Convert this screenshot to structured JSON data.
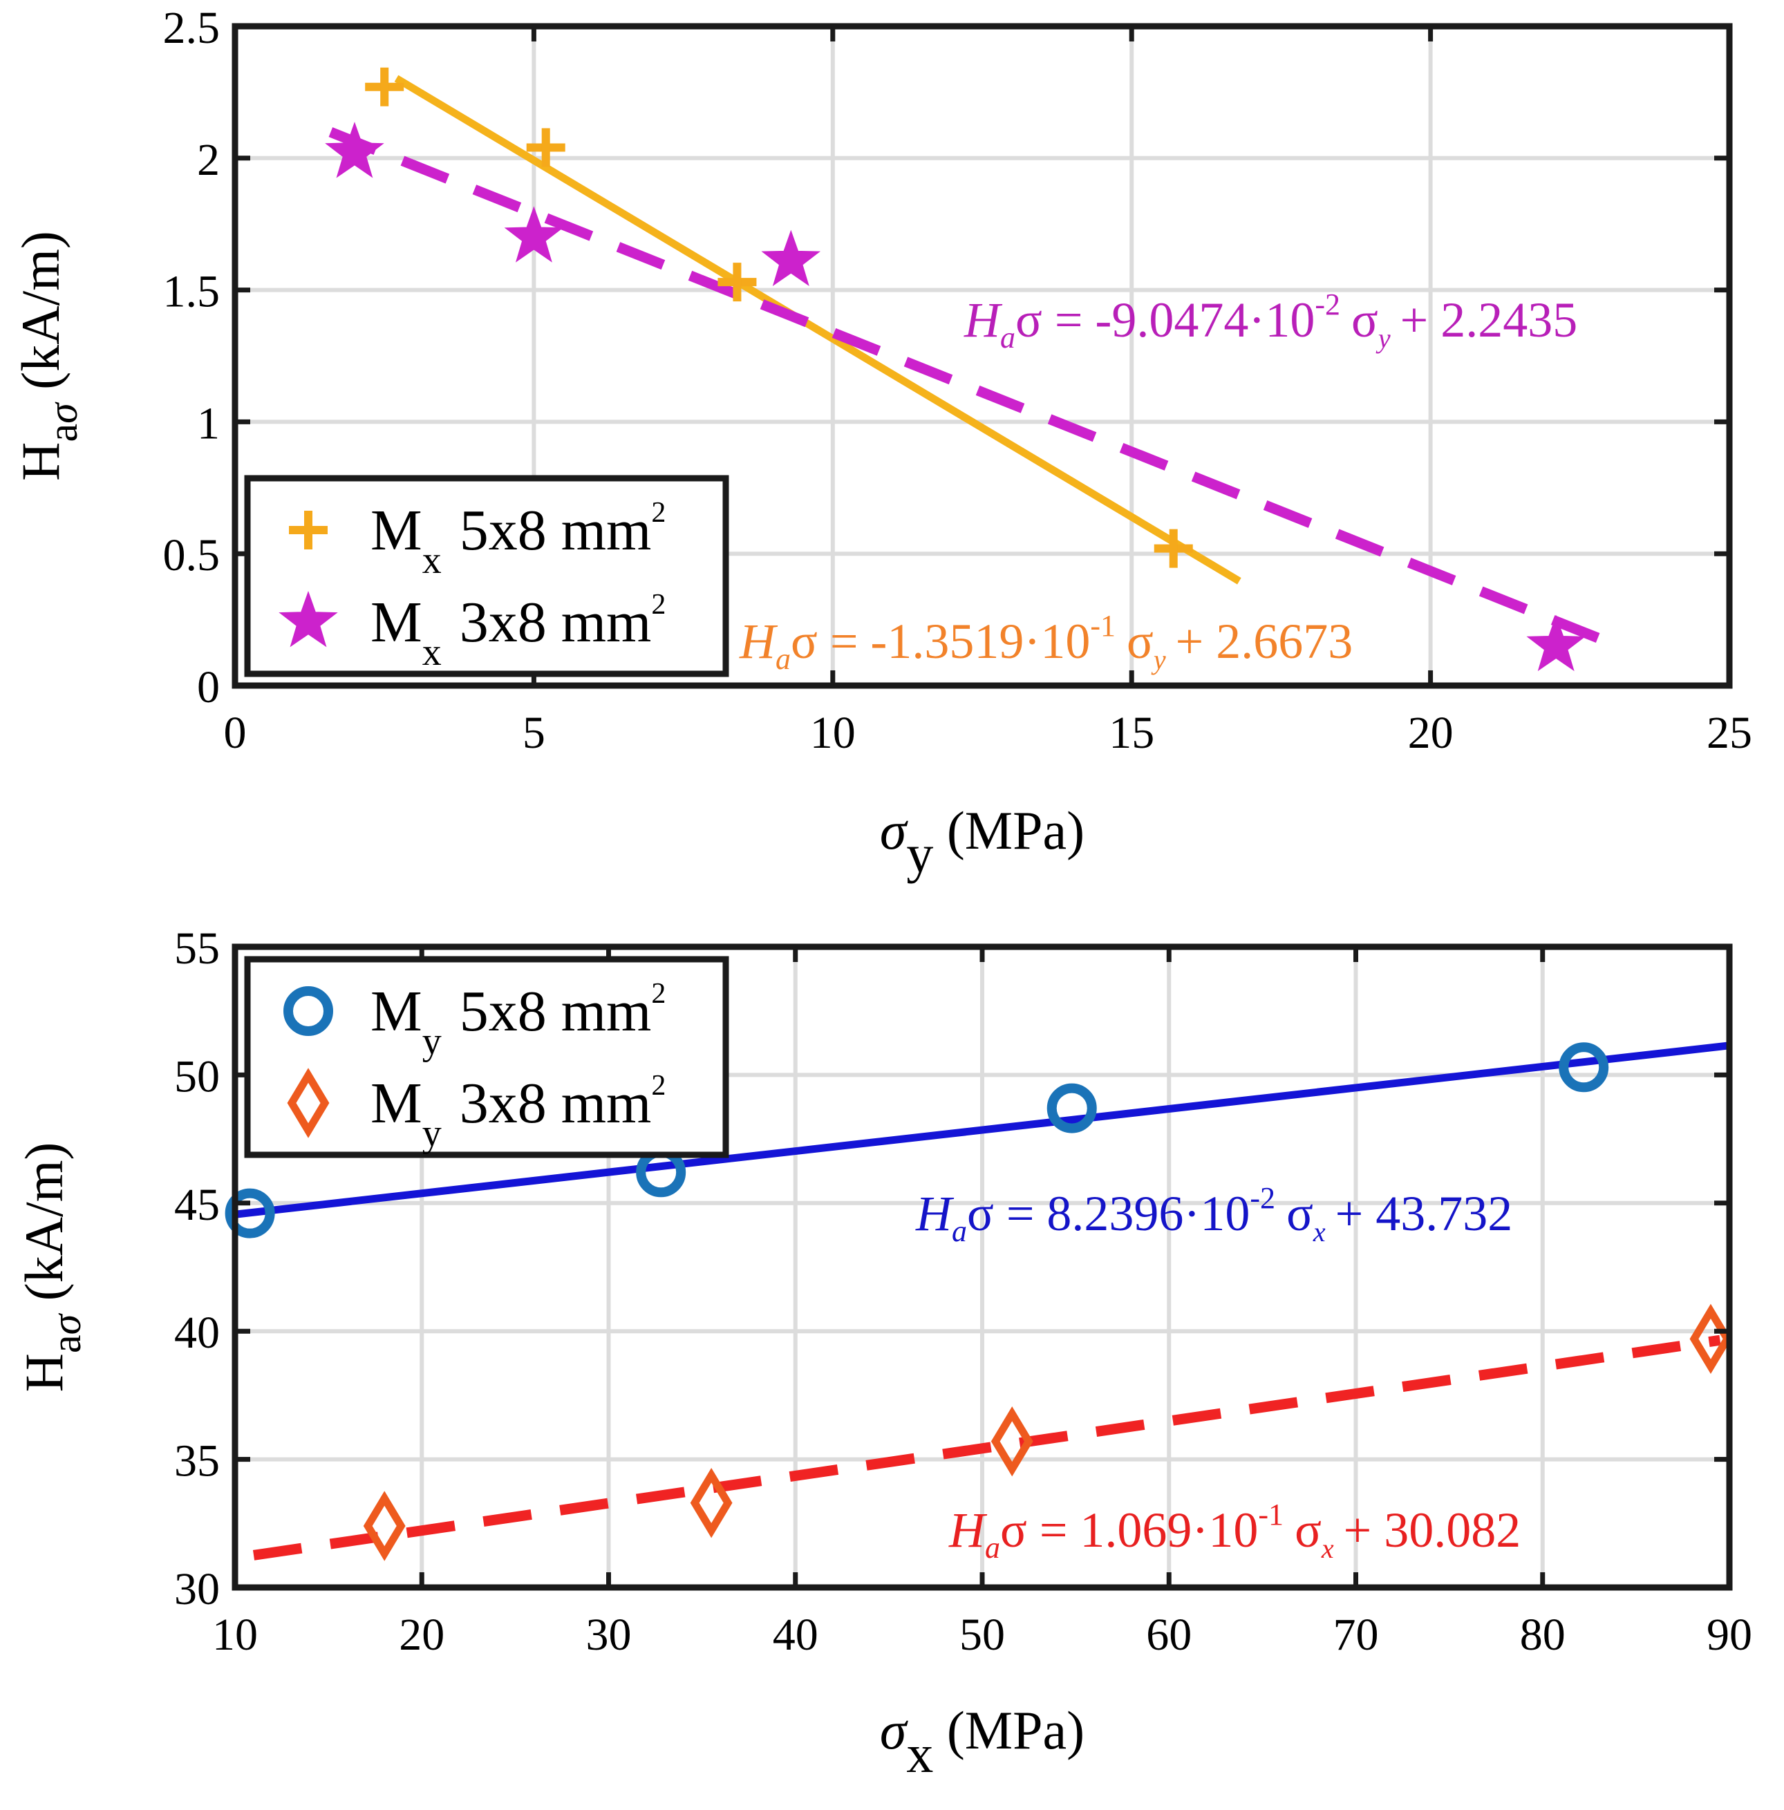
{
  "chart_data": [
    {
      "type": "scatter",
      "xlabel": "σy (MPa)",
      "ylabel": "Haσ (kA/m)",
      "xlim": [
        0,
        25
      ],
      "ylim": [
        0,
        2.5
      ],
      "xticks": [
        0,
        5,
        10,
        15,
        20,
        25
      ],
      "yticks": [
        0,
        0.5,
        1,
        1.5,
        2,
        2.5
      ],
      "xtick_labels": [
        "0",
        "5",
        "10",
        "15",
        "20",
        "25"
      ],
      "ytick_labels": [
        "0",
        "0.5",
        "1",
        "1.5",
        "2",
        "2.5"
      ],
      "grid": true,
      "legend_position": "bottom-left",
      "series": [
        {
          "name": "Mx 5x8 mm2",
          "label_main": "M",
          "label_sub": "x",
          "label_rest": "5x8 mm",
          "label_sup": "2",
          "marker": "plus",
          "color": "#F5A91B",
          "x": [
            2.5,
            5.2,
            8.4,
            15.7
          ],
          "y": [
            2.27,
            2.04,
            1.53,
            0.52
          ],
          "fit": {
            "slope": -0.13519,
            "intercept": 2.6673,
            "x_range": [
              2.7,
              16.8
            ],
            "style": "solid",
            "color": "#F5B21B"
          },
          "equation": {
            "pre": "H",
            "pre_sub": "a",
            "mid": "σ = -1.3519·10",
            "exp": "-1",
            "var": "σ",
            "var_sub": "y",
            "post": "+ 2.6673",
            "color": "#F2822A"
          }
        },
        {
          "name": "Mx 3x8 mm2",
          "label_main": "M",
          "label_sub": "x",
          "label_rest": "3x8 mm",
          "label_sup": "2",
          "marker": "star",
          "color": "#CC22CC",
          "x": [
            2.0,
            5.0,
            9.3,
            22.1
          ],
          "y": [
            2.02,
            1.7,
            1.61,
            0.15
          ],
          "fit": {
            "slope": -0.090474,
            "intercept": 2.2435,
            "x_range": [
              1.6,
              23.0
            ],
            "style": "dashed",
            "color": "#CC22CC"
          },
          "equation": {
            "pre": "H",
            "pre_sub": "a",
            "mid": "σ = -9.0474·10",
            "exp": "-2",
            "var": "σ",
            "var_sub": "y",
            "post": "+ 2.2435",
            "color": "#B81FB8"
          }
        }
      ]
    },
    {
      "type": "scatter",
      "xlabel": "σx (MPa)",
      "ylabel": "Haσ (kA/m)",
      "xlim": [
        10,
        90
      ],
      "ylim": [
        30,
        55
      ],
      "xticks": [
        10,
        20,
        30,
        40,
        50,
        60,
        70,
        80,
        90
      ],
      "yticks": [
        30,
        35,
        40,
        45,
        50,
        55
      ],
      "xtick_labels": [
        "10",
        "20",
        "30",
        "40",
        "50",
        "60",
        "70",
        "80",
        "90"
      ],
      "ytick_labels": [
        "30",
        "35",
        "40",
        "45",
        "50",
        "55"
      ],
      "grid": true,
      "legend_position": "top-left",
      "series": [
        {
          "name": "My 5x8 mm2",
          "label_main": "M",
          "label_sub": "y",
          "label_rest": "5x8 mm",
          "label_sup": "2",
          "marker": "circle",
          "color": "#1A73B8",
          "x": [
            10.8,
            32.8,
            54.8,
            82.2
          ],
          "y": [
            44.6,
            46.2,
            48.7,
            50.3
          ],
          "fit": {
            "slope": 0.082396,
            "intercept": 43.732,
            "x_range": [
              10,
              90
            ],
            "style": "solid",
            "color": "#1414D6"
          },
          "equation": {
            "pre": "H",
            "pre_sub": "a",
            "mid": "σ = 8.2396·10",
            "exp": "-2",
            "var": "σ",
            "var_sub": "x",
            "post": "+ 43.732",
            "color": "#1414C8"
          }
        },
        {
          "name": "My 3x8 mm2",
          "label_main": "M",
          "label_sub": "y",
          "label_rest": "3x8 mm",
          "label_sup": "2",
          "marker": "diamond",
          "color": "#EE5A1E",
          "x": [
            18.0,
            35.5,
            51.6,
            89.0
          ],
          "y": [
            32.4,
            33.3,
            35.7,
            39.7
          ],
          "fit": {
            "slope": 0.1069,
            "intercept": 30.082,
            "x_range": [
              11,
              89.5
            ],
            "style": "dashed",
            "color": "#F02323"
          },
          "equation": {
            "pre": "H",
            "pre_sub": "a",
            "mid": "σ = 1.069·10",
            "exp": "-1",
            "var": "σ",
            "var_sub": "x",
            "post": "+ 30.082",
            "color": "#E82020"
          }
        }
      ]
    }
  ]
}
